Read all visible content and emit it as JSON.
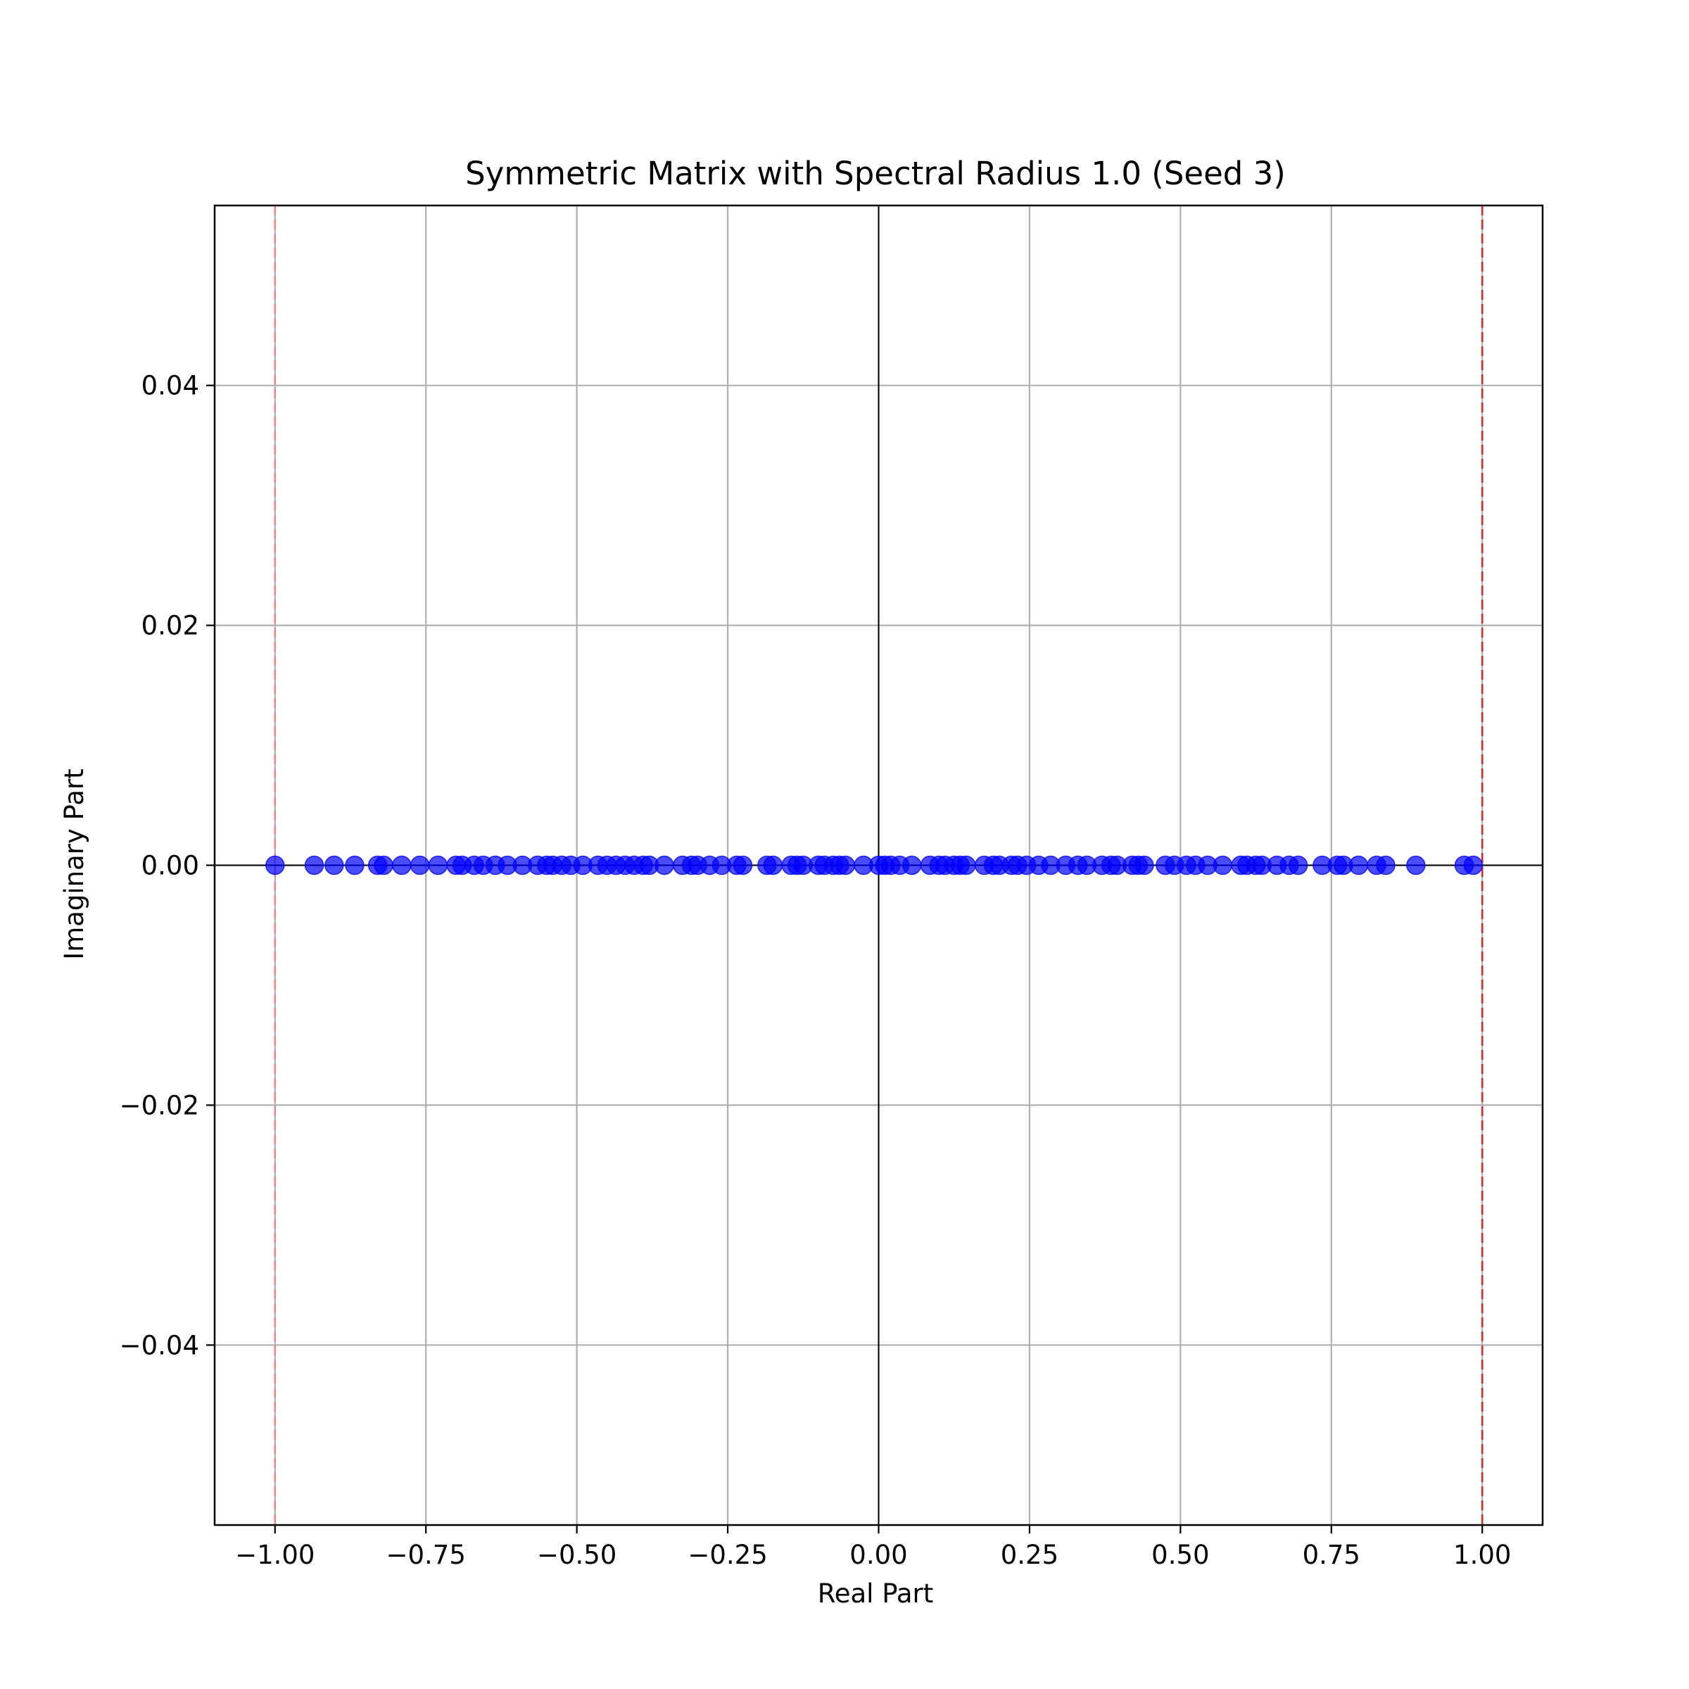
{
  "chart_data": {
    "type": "scatter",
    "title": "Symmetric Matrix with Spectral Radius 1.0 (Seed 3)",
    "xlabel": "Real Part",
    "ylabel": "Imaginary Part",
    "xlim": [
      -1.1,
      1.1
    ],
    "ylim": [
      -0.055,
      0.055
    ],
    "xticks": [
      -1.0,
      -0.75,
      -0.5,
      -0.25,
      0.0,
      0.25,
      0.5,
      0.75,
      1.0
    ],
    "xtick_labels": [
      "−1.00",
      "−0.75",
      "−0.50",
      "−0.25",
      "0.00",
      "0.25",
      "0.50",
      "0.75",
      "1.00"
    ],
    "yticks": [
      0.04,
      0.02,
      0.0,
      -0.02,
      -0.04
    ],
    "ytick_labels": [
      "0.04",
      "0.02",
      "0.00",
      "−0.02",
      "−0.04"
    ],
    "grid": true,
    "point_color": "#0000ff",
    "point_alpha": 0.7,
    "reference_lines": [
      {
        "x": -1.0,
        "color": "#e8888a",
        "style": "dashed"
      },
      {
        "x": 1.0,
        "color": "#e0262a",
        "style": "dashed"
      }
    ],
    "zero_lines_color": "#000000",
    "series": [
      {
        "x": [
          -1.0,
          -0.935,
          -0.902,
          -0.868,
          -0.83,
          -0.82,
          -0.79,
          -0.76,
          -0.73,
          -0.7,
          -0.69,
          -0.67,
          -0.655,
          -0.635,
          -0.615,
          -0.59,
          -0.565,
          -0.55,
          -0.54,
          -0.525,
          -0.51,
          -0.49,
          -0.465,
          -0.45,
          -0.435,
          -0.42,
          -0.405,
          -0.39,
          -0.38,
          -0.355,
          -0.325,
          -0.31,
          -0.3,
          -0.28,
          -0.26,
          -0.235,
          -0.225,
          -0.185,
          -0.175,
          -0.145,
          -0.135,
          -0.125,
          -0.1,
          -0.09,
          -0.075,
          -0.065,
          -0.055,
          -0.025,
          0.0,
          0.01,
          0.02,
          0.035,
          0.055,
          0.085,
          0.1,
          0.11,
          0.125,
          0.135,
          0.145,
          0.175,
          0.19,
          0.2,
          0.22,
          0.23,
          0.245,
          0.265,
          0.285,
          0.31,
          0.33,
          0.345,
          0.37,
          0.385,
          0.395,
          0.42,
          0.43,
          0.44,
          0.475,
          0.49,
          0.51,
          0.525,
          0.545,
          0.57,
          0.6,
          0.61,
          0.625,
          0.635,
          0.66,
          0.68,
          0.695,
          0.735,
          0.76,
          0.77,
          0.795,
          0.825,
          0.84,
          0.89,
          0.97,
          0.985
        ],
        "y": [
          0,
          0,
          0,
          0,
          0,
          0,
          0,
          0,
          0,
          0,
          0,
          0,
          0,
          0,
          0,
          0,
          0,
          0,
          0,
          0,
          0,
          0,
          0,
          0,
          0,
          0,
          0,
          0,
          0,
          0,
          0,
          0,
          0,
          0,
          0,
          0,
          0,
          0,
          0,
          0,
          0,
          0,
          0,
          0,
          0,
          0,
          0,
          0,
          0,
          0,
          0,
          0,
          0,
          0,
          0,
          0,
          0,
          0,
          0,
          0,
          0,
          0,
          0,
          0,
          0,
          0,
          0,
          0,
          0,
          0,
          0,
          0,
          0,
          0,
          0,
          0,
          0,
          0,
          0,
          0,
          0,
          0,
          0,
          0,
          0,
          0,
          0,
          0,
          0,
          0,
          0,
          0,
          0,
          0,
          0,
          0,
          0,
          0
        ]
      }
    ]
  }
}
